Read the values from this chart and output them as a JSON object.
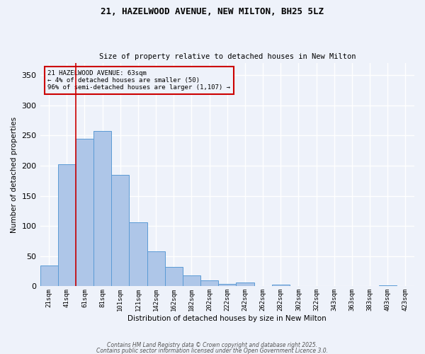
{
  "title1": "21, HAZELWOOD AVENUE, NEW MILTON, BH25 5LZ",
  "title2": "Size of property relative to detached houses in New Milton",
  "xlabel": "Distribution of detached houses by size in New Milton",
  "ylabel": "Number of detached properties",
  "bar_labels": [
    "21sqm",
    "41sqm",
    "61sqm",
    "81sqm",
    "101sqm",
    "121sqm",
    "142sqm",
    "162sqm",
    "182sqm",
    "202sqm",
    "222sqm",
    "242sqm",
    "262sqm",
    "282sqm",
    "302sqm",
    "322sqm",
    "343sqm",
    "363sqm",
    "383sqm",
    "403sqm",
    "423sqm"
  ],
  "bar_values": [
    35,
    202,
    245,
    258,
    185,
    106,
    58,
    32,
    18,
    10,
    4,
    6,
    0,
    3,
    0,
    1,
    0,
    1,
    0,
    2,
    0
  ],
  "bar_color": "#aec6e8",
  "bar_edge_color": "#5b9bd5",
  "ylim": [
    0,
    370
  ],
  "yticks": [
    0,
    50,
    100,
    150,
    200,
    250,
    300,
    350
  ],
  "property_line_color": "#cc0000",
  "annotation_title": "21 HAZELWOOD AVENUE: 63sqm",
  "annotation_line1": "← 4% of detached houses are smaller (50)",
  "annotation_line2": "96% of semi-detached houses are larger (1,107) →",
  "annotation_box_color": "#cc0000",
  "background_color": "#eef2fa",
  "grid_color": "#ffffff",
  "footer1": "Contains HM Land Registry data © Crown copyright and database right 2025.",
  "footer2": "Contains public sector information licensed under the Open Government Licence 3.0."
}
